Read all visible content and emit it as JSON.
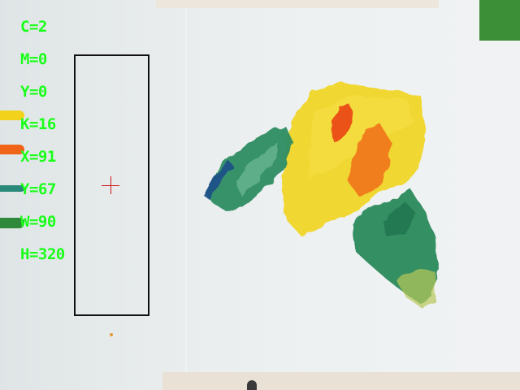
{
  "readout": {
    "c": "C=2",
    "m": "M=0",
    "y": "Y=0",
    "k": "K=16",
    "x": "X=91",
    "y_pos": "Y=67",
    "w": "W=90",
    "h": "H=320"
  },
  "colors": {
    "hud_text": "#1aff1a",
    "roi_border": "#111111",
    "crosshair": "#d01818",
    "marker_square": "#3c8f36",
    "swatch_yellow": "#f2d21a",
    "swatch_orange": "#f06418",
    "swatch_teal": "#2a8a7a",
    "swatch_green": "#2e8a3a"
  }
}
